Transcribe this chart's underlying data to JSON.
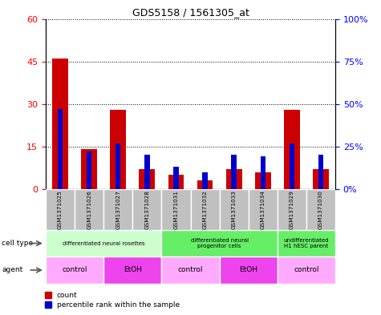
{
  "title": "GDS5158 / 1561305_at",
  "samples": [
    "GSM1371025",
    "GSM1371026",
    "GSM1371027",
    "GSM1371028",
    "GSM1371031",
    "GSM1371032",
    "GSM1371033",
    "GSM1371034",
    "GSM1371029",
    "GSM1371030"
  ],
  "counts": [
    46,
    14,
    28,
    7,
    5,
    3,
    7,
    6,
    28,
    7
  ],
  "percentiles": [
    47,
    22,
    27,
    20,
    13,
    10,
    20,
    19,
    27,
    20
  ],
  "ylim_left": [
    0,
    60
  ],
  "ylim_right": [
    0,
    100
  ],
  "yticks_left": [
    0,
    15,
    30,
    45,
    60
  ],
  "yticks_right": [
    0,
    25,
    50,
    75,
    100
  ],
  "bar_color_count": "#cc0000",
  "bar_color_pct": "#0000cc",
  "cell_type_groups": [
    {
      "label": "differentiated neural rosettes",
      "start": 0,
      "end": 4,
      "color": "#ccffcc"
    },
    {
      "label": "differentiated neural\nprogenitor cells",
      "start": 4,
      "end": 8,
      "color": "#66ee66"
    },
    {
      "label": "undifferentiated\nH1 hESC parent",
      "start": 8,
      "end": 10,
      "color": "#66ee66"
    }
  ],
  "agent_groups": [
    {
      "label": "control",
      "start": 0,
      "end": 2,
      "color": "#ffaaff"
    },
    {
      "label": "EtOH",
      "start": 2,
      "end": 4,
      "color": "#ee44ee"
    },
    {
      "label": "control",
      "start": 4,
      "end": 6,
      "color": "#ffaaff"
    },
    {
      "label": "EtOH",
      "start": 6,
      "end": 8,
      "color": "#ee44ee"
    },
    {
      "label": "control",
      "start": 8,
      "end": 10,
      "color": "#ffaaff"
    }
  ],
  "legend_count_label": "count",
  "legend_pct_label": "percentile rank within the sample",
  "cell_type_label": "cell type",
  "agent_label": "agent",
  "tick_bg_color": "#c0c0c0",
  "red_bar_width": 0.55,
  "blue_bar_width": 0.18
}
